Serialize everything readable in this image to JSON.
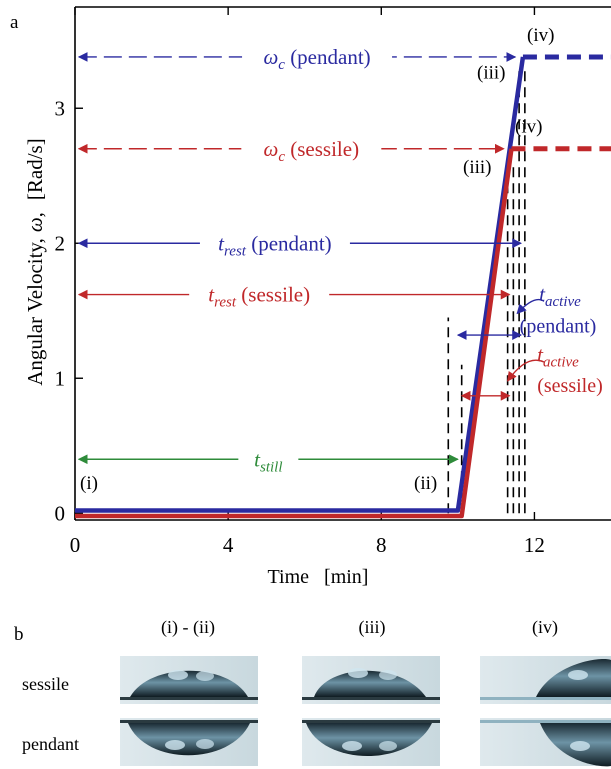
{
  "chart_data": {
    "type": "line",
    "panel_label": "a",
    "xlabel": "Time   [min]",
    "ylabel_main": "Angular Velocity,",
    "ylabel_symbol": "ω,",
    "ylabel_unit": "[Rad/s]",
    "xlim": [
      0,
      14
    ],
    "ylim": [
      -0.05,
      3.75
    ],
    "x_ticks": [
      0,
      4,
      8,
      12
    ],
    "y_ticks": [
      0,
      1,
      2,
      3
    ],
    "grid": false,
    "colors": {
      "pendant": "#2a2aa0",
      "sessile": "#c0282a",
      "still": "#2e8b3a",
      "black": "#000000"
    },
    "series": [
      {
        "key": "pendant",
        "points": [
          [
            0,
            0.02
          ],
          [
            10,
            0.02
          ],
          [
            11.7,
            3.38
          ]
        ],
        "plateau": [
          [
            11.7,
            3.38
          ],
          [
            14,
            3.38
          ]
        ]
      },
      {
        "key": "sessile",
        "points": [
          [
            0,
            -0.02
          ],
          [
            10.1,
            -0.02
          ],
          [
            11.4,
            2.7
          ]
        ],
        "plateau": [
          [
            11.4,
            2.7
          ],
          [
            14,
            2.7
          ]
        ]
      }
    ],
    "annotations": {
      "wc_pendant": {
        "symbol": "ω",
        "sub": "c",
        "text": " (pendant)",
        "y": 3.38,
        "x_from": 0.1,
        "x_to": 11.5
      },
      "wc_sessile": {
        "symbol": "ω",
        "sub": "c",
        "text": " (sessile)",
        "y": 2.7,
        "x_from": 0.1,
        "x_to": 11.2
      },
      "trest_pendant": {
        "sym": "t",
        "sub": "rest",
        "text": " (pendant)",
        "y": 2.0,
        "x_from": 0.1,
        "x_to": 11.65
      },
      "trest_sessile": {
        "sym": "t",
        "sub": "rest",
        "text": " (sessile)",
        "y": 1.62,
        "x_from": 0.1,
        "x_to": 11.35
      },
      "tstill": {
        "sym": "t",
        "sub": "still",
        "text": "",
        "y": 0.4,
        "x_from": 0.1,
        "x_to": 10.0
      },
      "tactive_pendant": {
        "sym": "t",
        "sub": "active",
        "text": "(pendant)",
        "y": 1.32,
        "x_from": 10.0,
        "x_to": 11.65
      },
      "tactive_sessile": {
        "sym": "t",
        "sub": "active",
        "text": "(sessile)",
        "y": 0.87,
        "x_from": 10.1,
        "x_to": 11.35
      }
    },
    "stage_labels": {
      "i": "(i)",
      "ii": "(ii)",
      "iii_pendant": "(iii)",
      "iv_pendant": "(iv)",
      "iii_sessile": "(iii)",
      "iv_sessile": "(iv)"
    },
    "vlines": [
      {
        "x": 9.75,
        "y0": 0,
        "y1": 1.45
      },
      {
        "x": 10.1,
        "y0": 0,
        "y1": 1.1
      },
      {
        "x": 11.3,
        "y0": 0,
        "y1": 2.6
      },
      {
        "x": 11.45,
        "y0": 0,
        "y1": 2.6
      },
      {
        "x": 11.6,
        "y0": 0,
        "y1": 3.3
      },
      {
        "x": 11.75,
        "y0": 0,
        "y1": 3.3
      }
    ]
  },
  "panel_b": {
    "label": "b",
    "columns": [
      "(i) - (ii)",
      "(iii)",
      "(iv)"
    ],
    "rows": [
      "sessile",
      "pendant"
    ]
  }
}
